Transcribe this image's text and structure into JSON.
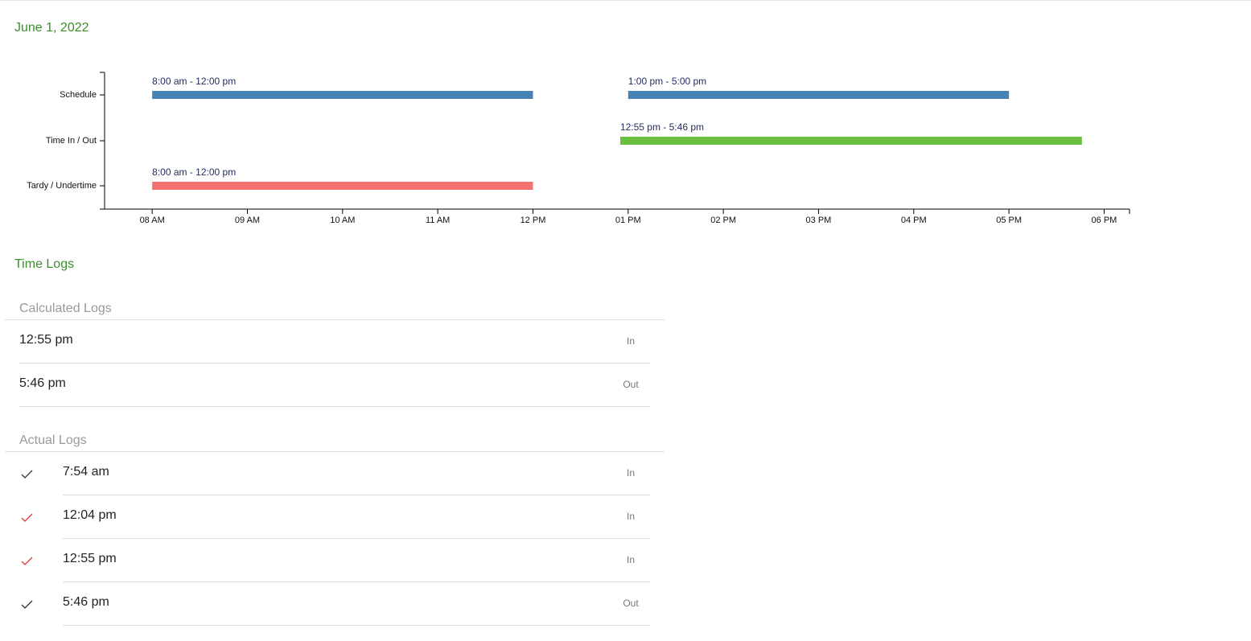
{
  "header": {
    "date": "June 1, 2022"
  },
  "chart_data": {
    "type": "timeline",
    "categories": [
      {
        "name": "Schedule",
        "color": "#4682b4",
        "bars": [
          {
            "start": 8,
            "end": 12,
            "label": "8:00 am - 12:00 pm"
          },
          {
            "start": 13,
            "end": 17,
            "label": "1:00 pm - 5:00 pm"
          }
        ]
      },
      {
        "name": "Time In / Out",
        "color": "#6abf40",
        "bars": [
          {
            "start": 12.9167,
            "end": 17.7667,
            "label": "12:55 pm - 5:46 pm"
          }
        ]
      },
      {
        "name": "Tardy / Undertime",
        "color": "#f47171",
        "bars": [
          {
            "start": 8,
            "end": 12,
            "label": "8:00 am - 12:00 pm"
          }
        ]
      }
    ],
    "xlim": [
      7.5,
      18.2667
    ],
    "xticks": [
      {
        "value": 8,
        "label": "08 AM"
      },
      {
        "value": 9,
        "label": "09 AM"
      },
      {
        "value": 10,
        "label": "10 AM"
      },
      {
        "value": 11,
        "label": "11 AM"
      },
      {
        "value": 12,
        "label": "12 PM"
      },
      {
        "value": 13,
        "label": "01 PM"
      },
      {
        "value": 14,
        "label": "02 PM"
      },
      {
        "value": 15,
        "label": "03 PM"
      },
      {
        "value": 16,
        "label": "04 PM"
      },
      {
        "value": 17,
        "label": "05 PM"
      },
      {
        "value": 18,
        "label": "06 PM"
      }
    ]
  },
  "time_logs": {
    "title": "Time Logs",
    "calculated": {
      "title": "Calculated Logs",
      "items": [
        {
          "time": "12:55 pm",
          "type": "In"
        },
        {
          "time": "5:46 pm",
          "type": "Out"
        }
      ]
    },
    "actual": {
      "title": "Actual Logs",
      "items": [
        {
          "time": "7:54 am",
          "type": "In",
          "check_color": "#333333"
        },
        {
          "time": "12:04 pm",
          "type": "In",
          "check_color": "#e53935"
        },
        {
          "time": "12:55 pm",
          "type": "In",
          "check_color": "#e53935"
        },
        {
          "time": "5:46 pm",
          "type": "Out",
          "check_color": "#333333"
        }
      ]
    }
  }
}
